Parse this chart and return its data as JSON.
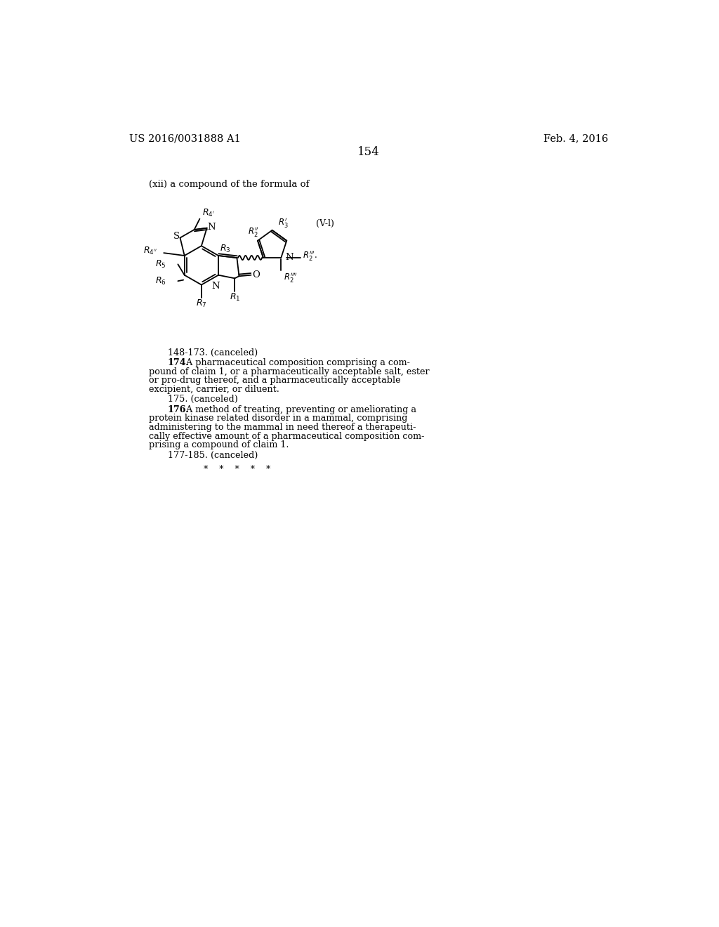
{
  "background_color": "#ffffff",
  "page_number": "154",
  "header_left": "US 2016/0031888 A1",
  "header_right": "Feb. 4, 2016",
  "intro_text": "(xii) a compound of the formula of",
  "formula_label": "(V-l)",
  "paragraph_148": "148-173. (canceled)",
  "paragraph_174_bold": "174.",
  "paragraph_174_text": " A pharmaceutical composition comprising a com-pound of claim 1, or a pharmaceutically acceptable salt, ester or pro-drug thereof, and a pharmaceutically acceptable excipient, carrier, or diluent.",
  "paragraph_175": "175. (canceled)",
  "paragraph_176_bold": "176.",
  "paragraph_176_text": " A method of treating, preventing or ameliorating a protein kinase related disorder in a mammal, comprising administering to the mammal in need thereof a therapeuti-cally effective amount of a pharmaceutical composition com-prising a compound of claim 1.",
  "paragraph_177": "177-185. (canceled)",
  "stars": "*    *    *    *    *",
  "font_size_header": 10.5,
  "font_size_body": 9.2,
  "font_size_page_num": 12
}
